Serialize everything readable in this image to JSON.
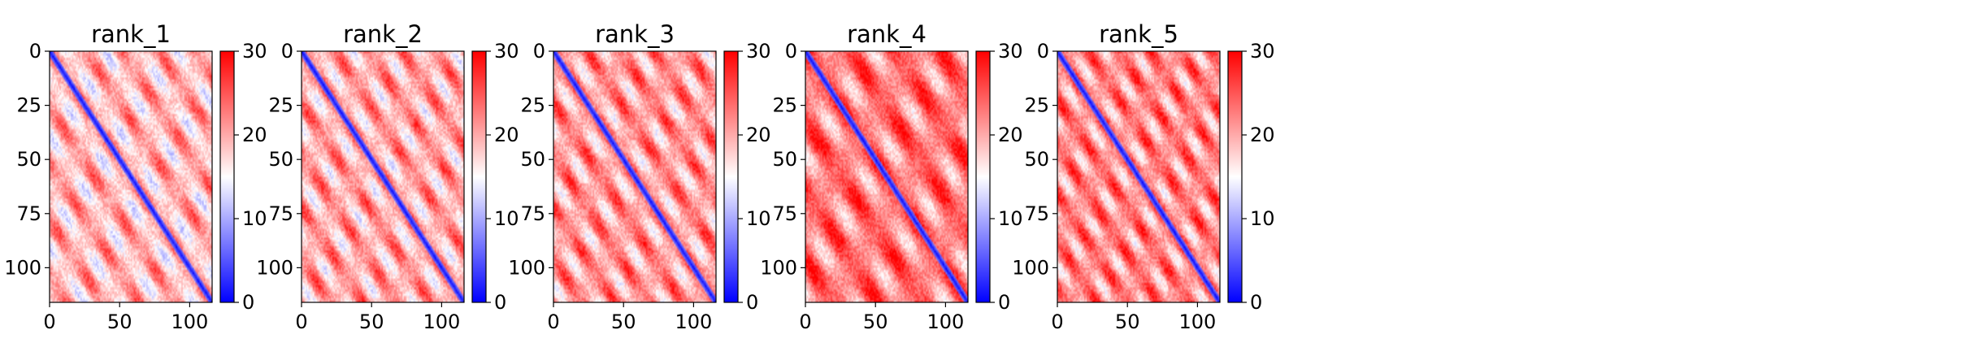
{
  "chart_data": {
    "type": "heatmap",
    "colormap": {
      "name": "bwr",
      "low": "#0000ff",
      "mid": "#ffffff",
      "high": "#ff0000",
      "vmin": 0,
      "vmax": 30
    },
    "matrix_size": 116,
    "xlim": [
      0,
      116
    ],
    "ylim": [
      116,
      0
    ],
    "x_ticks": [
      "0",
      "50",
      "100"
    ],
    "y_ticks": [
      "0",
      "25",
      "50",
      "75",
      "100"
    ],
    "colorbar_ticks": [
      "0",
      "10",
      "20",
      "30"
    ],
    "panels": [
      {
        "title": "rank_1",
        "band_period": 26,
        "band_phase": 0,
        "mean_distance": 19
      },
      {
        "title": "rank_2",
        "band_period": 24,
        "band_phase": 6,
        "mean_distance": 20
      },
      {
        "title": "rank_3",
        "band_period": 24,
        "band_phase": 10,
        "mean_distance": 21
      },
      {
        "title": "rank_4",
        "band_period": 32,
        "band_phase": 4,
        "mean_distance": 23
      },
      {
        "title": "rank_5",
        "band_period": 22,
        "band_phase": 8,
        "mean_distance": 22
      }
    ]
  }
}
